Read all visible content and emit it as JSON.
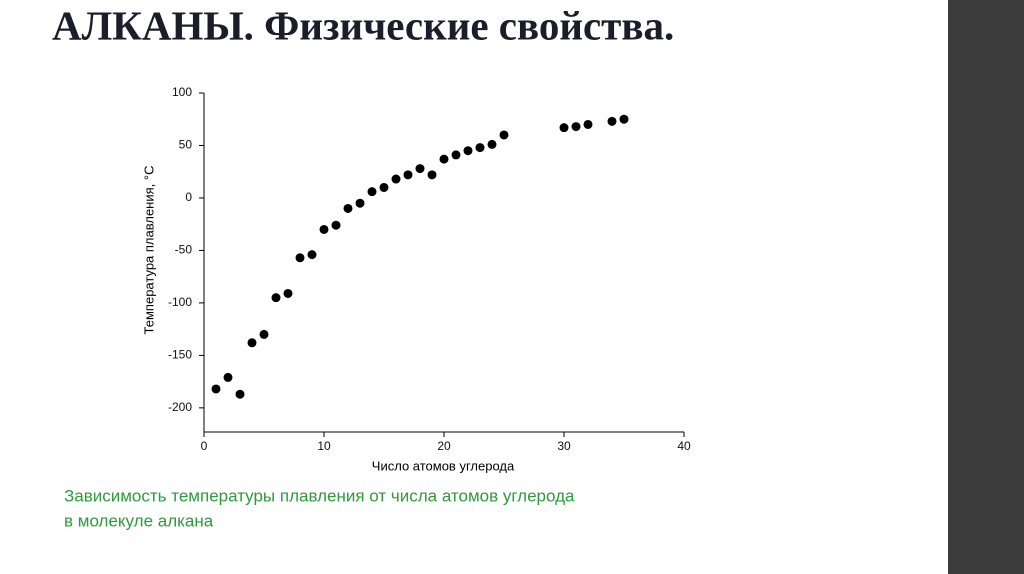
{
  "title": "АЛКАНЫ. Физические свойства.",
  "chart_data": {
    "type": "scatter",
    "x_label": "Число атомов углерода",
    "y_label": "Температура плавления, °C",
    "x": [
      1,
      2,
      3,
      4,
      5,
      6,
      7,
      8,
      9,
      10,
      11,
      12,
      13,
      14,
      15,
      16,
      17,
      18,
      19,
      20,
      21,
      22,
      23,
      24,
      25,
      30,
      31,
      32,
      34,
      35
    ],
    "values": [
      -182,
      -171,
      -187,
      -138,
      -130,
      -95,
      -91,
      -57,
      -54,
      -30,
      -26,
      -10,
      -5,
      6,
      10,
      18,
      22,
      28,
      22,
      37,
      41,
      45,
      48,
      51,
      60,
      67,
      68,
      70,
      73,
      75
    ],
    "color": "#000000",
    "xlim": [
      0,
      40
    ],
    "xticks": [
      0,
      10,
      20,
      30,
      40
    ],
    "ylim": [
      -223,
      100
    ],
    "yticks": [
      100,
      50,
      0,
      -50,
      -100,
      -150,
      -200
    ]
  },
  "caption": [
    "Зависимость температуры плавления от числа атомов углерода",
    "в молекуле алкана"
  ]
}
